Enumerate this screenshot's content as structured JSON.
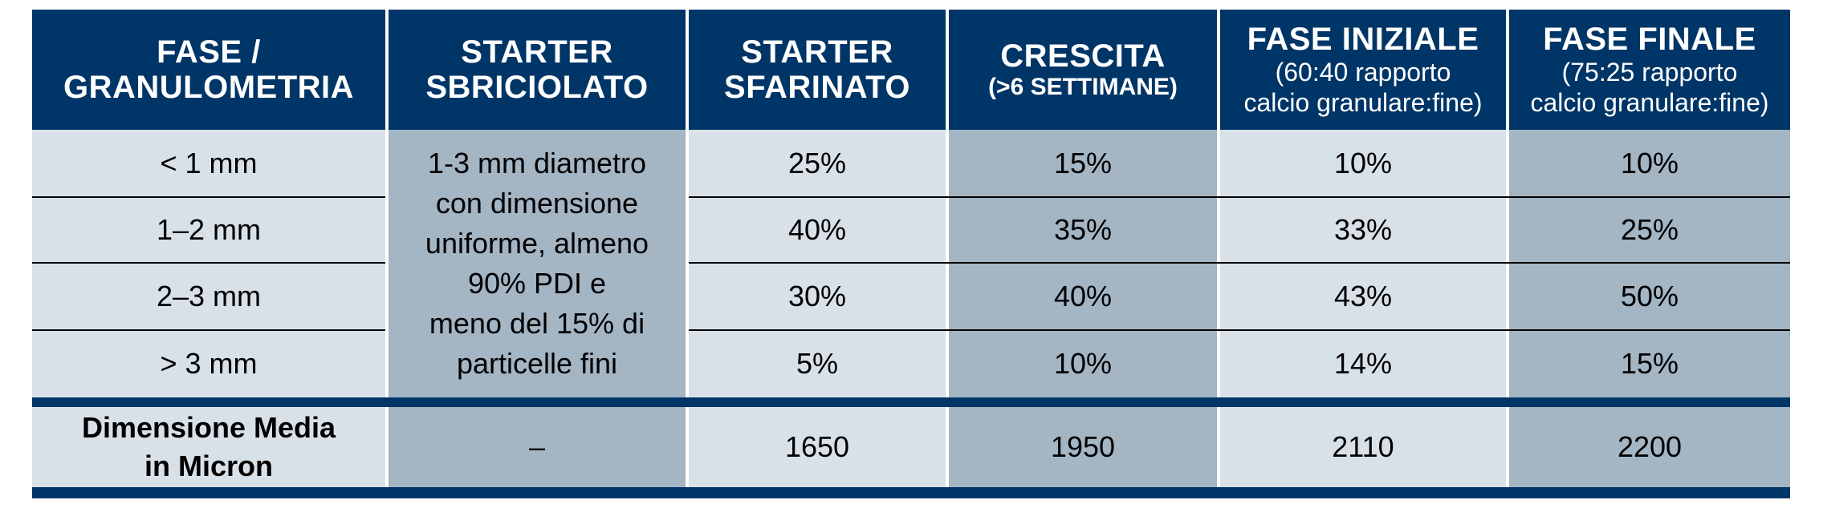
{
  "table": {
    "headers": [
      {
        "main": "FASE /\nGRANULOMETRIA",
        "sub": ""
      },
      {
        "main": "STARTER\nSBRICIOLATO",
        "sub": ""
      },
      {
        "main": "STARTER\nSFARINATO",
        "sub": ""
      },
      {
        "main": "CRESCITA",
        "sub": "(>6 SETTIMANE)"
      },
      {
        "main": "FASE INIZIALE",
        "sub": "(60:40 rapporto\ncalcio granulare:fine)"
      },
      {
        "main": "FASE FINALE",
        "sub": "(75:25 rapporto\ncalcio granulare:fine)"
      }
    ],
    "rows": [
      {
        "label": "< 1 mm",
        "starter_sfarinato": "25%",
        "crescita": "15%",
        "fase_iniziale": "10%",
        "fase_finale": "10%"
      },
      {
        "label": "1–2 mm",
        "starter_sfarinato": "40%",
        "crescita": "35%",
        "fase_iniziale": "33%",
        "fase_finale": "25%"
      },
      {
        "label": "2–3 mm",
        "starter_sfarinato": "30%",
        "crescita": "40%",
        "fase_iniziale": "43%",
        "fase_finale": "50%"
      },
      {
        "label": "> 3 mm",
        "starter_sfarinato": "5%",
        "crescita": "10%",
        "fase_iniziale": "14%",
        "fase_finale": "15%"
      }
    ],
    "starter_sbriciolato_note": "1-3 mm diametro\ncon dimensione\nuniforme, almeno\n90% PDI e\nmeno del 15% di\nparticelle fini",
    "footer": {
      "label": "Dimensione Media\nin Micron",
      "starter_sbriciolato": "–",
      "starter_sfarinato": "1650",
      "crescita": "1950",
      "fase_iniziale": "2110",
      "fase_finale": "2200"
    }
  }
}
